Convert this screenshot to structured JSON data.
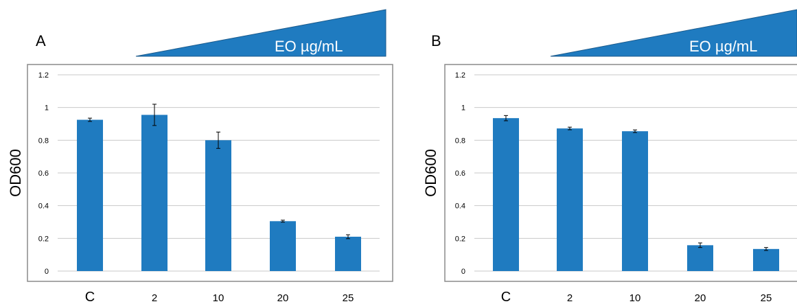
{
  "colors": {
    "bar": "#1f7bc0",
    "wedge": "#1f7bc0",
    "wedge_edge": "#1a5a8c",
    "frame": "#8a8a8a",
    "grid": "#c8c8c8",
    "text": "#000000"
  },
  "chart_data": [
    {
      "type": "bar",
      "panel_label": "A",
      "gradient_label": "EO µg/mL",
      "ylabel": "OD600",
      "categories": [
        "C",
        "2",
        "10",
        "20",
        "25"
      ],
      "values": [
        0.925,
        0.955,
        0.8,
        0.305,
        0.21
      ],
      "errors": [
        0.01,
        0.065,
        0.05,
        0.006,
        0.012
      ],
      "yticks": [
        "0",
        "0.2",
        "0.4",
        "0.6",
        "0.8",
        "1",
        "1.2"
      ],
      "ylim": [
        0,
        1.2
      ],
      "grid": true
    },
    {
      "type": "bar",
      "panel_label": "B",
      "gradient_label": "EO µg/mL",
      "ylabel": "OD600",
      "categories": [
        "C",
        "2",
        "10",
        "20",
        "25"
      ],
      "values": [
        0.935,
        0.872,
        0.855,
        0.158,
        0.135
      ],
      "errors": [
        0.016,
        0.008,
        0.008,
        0.014,
        0.009
      ],
      "yticks": [
        "0",
        "0.2",
        "0.4",
        "0.6",
        "0.8",
        "1",
        "1.2"
      ],
      "ylim": [
        0,
        1.2
      ],
      "grid": true
    }
  ]
}
